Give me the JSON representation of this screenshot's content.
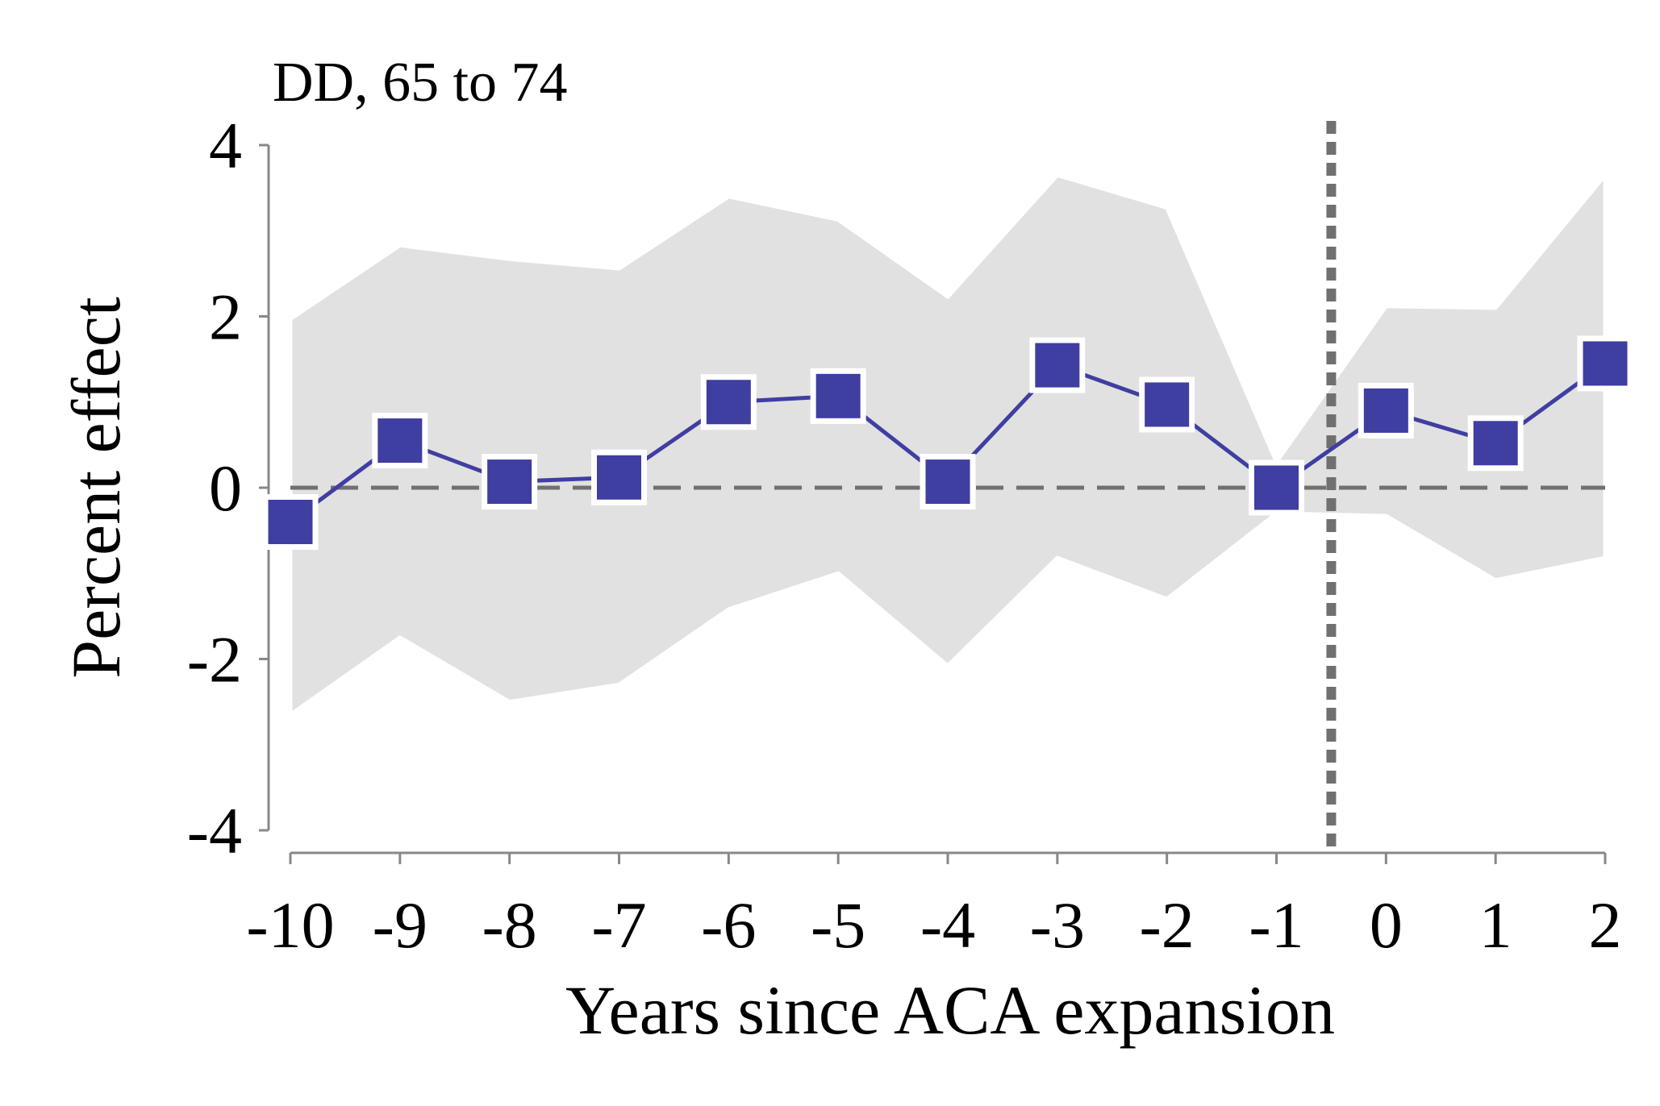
{
  "chart_data": {
    "type": "line",
    "title": "DD, 65 to 74",
    "xlabel": "Years since ACA expansion",
    "ylabel": "Percent effect",
    "x": [
      -10,
      -9,
      -8,
      -7,
      -6,
      -5,
      -4,
      -3,
      -2,
      -1,
      0,
      1,
      2
    ],
    "x_tick_labels": [
      "-10",
      "-9",
      "-8",
      "-7",
      "-6",
      "-5",
      "-4",
      "-3",
      "-2",
      "-1",
      "0",
      "1",
      "2"
    ],
    "y_ticks": [
      4,
      2,
      0,
      -2,
      -4
    ],
    "y_tick_labels": [
      "4",
      "2",
      "0",
      "-2",
      "-4"
    ],
    "xlim": [
      -10,
      2
    ],
    "ylim": [
      -4,
      4
    ],
    "grid": false,
    "legend": "none",
    "series": [
      {
        "values": [
          -0.4,
          0.55,
          0.07,
          0.12,
          1.0,
          1.07,
          0.07,
          1.43,
          0.97,
          0.0,
          0.9,
          0.52,
          1.45
        ],
        "ci_lower": [
          -2.65,
          -1.75,
          -2.5,
          -2.3,
          -1.42,
          -1.0,
          -2.08,
          -0.82,
          -1.3,
          -0.3,
          -0.33,
          -1.08,
          -0.82
        ],
        "ci_upper": [
          1.97,
          2.83,
          2.67,
          2.56,
          3.4,
          3.13,
          2.23,
          3.65,
          3.27,
          0.3,
          2.12,
          2.1,
          3.65
        ],
        "color": "#3f3ea1",
        "marker": "square"
      }
    ],
    "reference_lines": {
      "horizontal_y": 0,
      "vertical_x": -0.5
    },
    "colors": {
      "series": "#3f3ea1",
      "ci_band": "#e1e1e1",
      "reference": "#707070",
      "axis": "#888888"
    }
  }
}
